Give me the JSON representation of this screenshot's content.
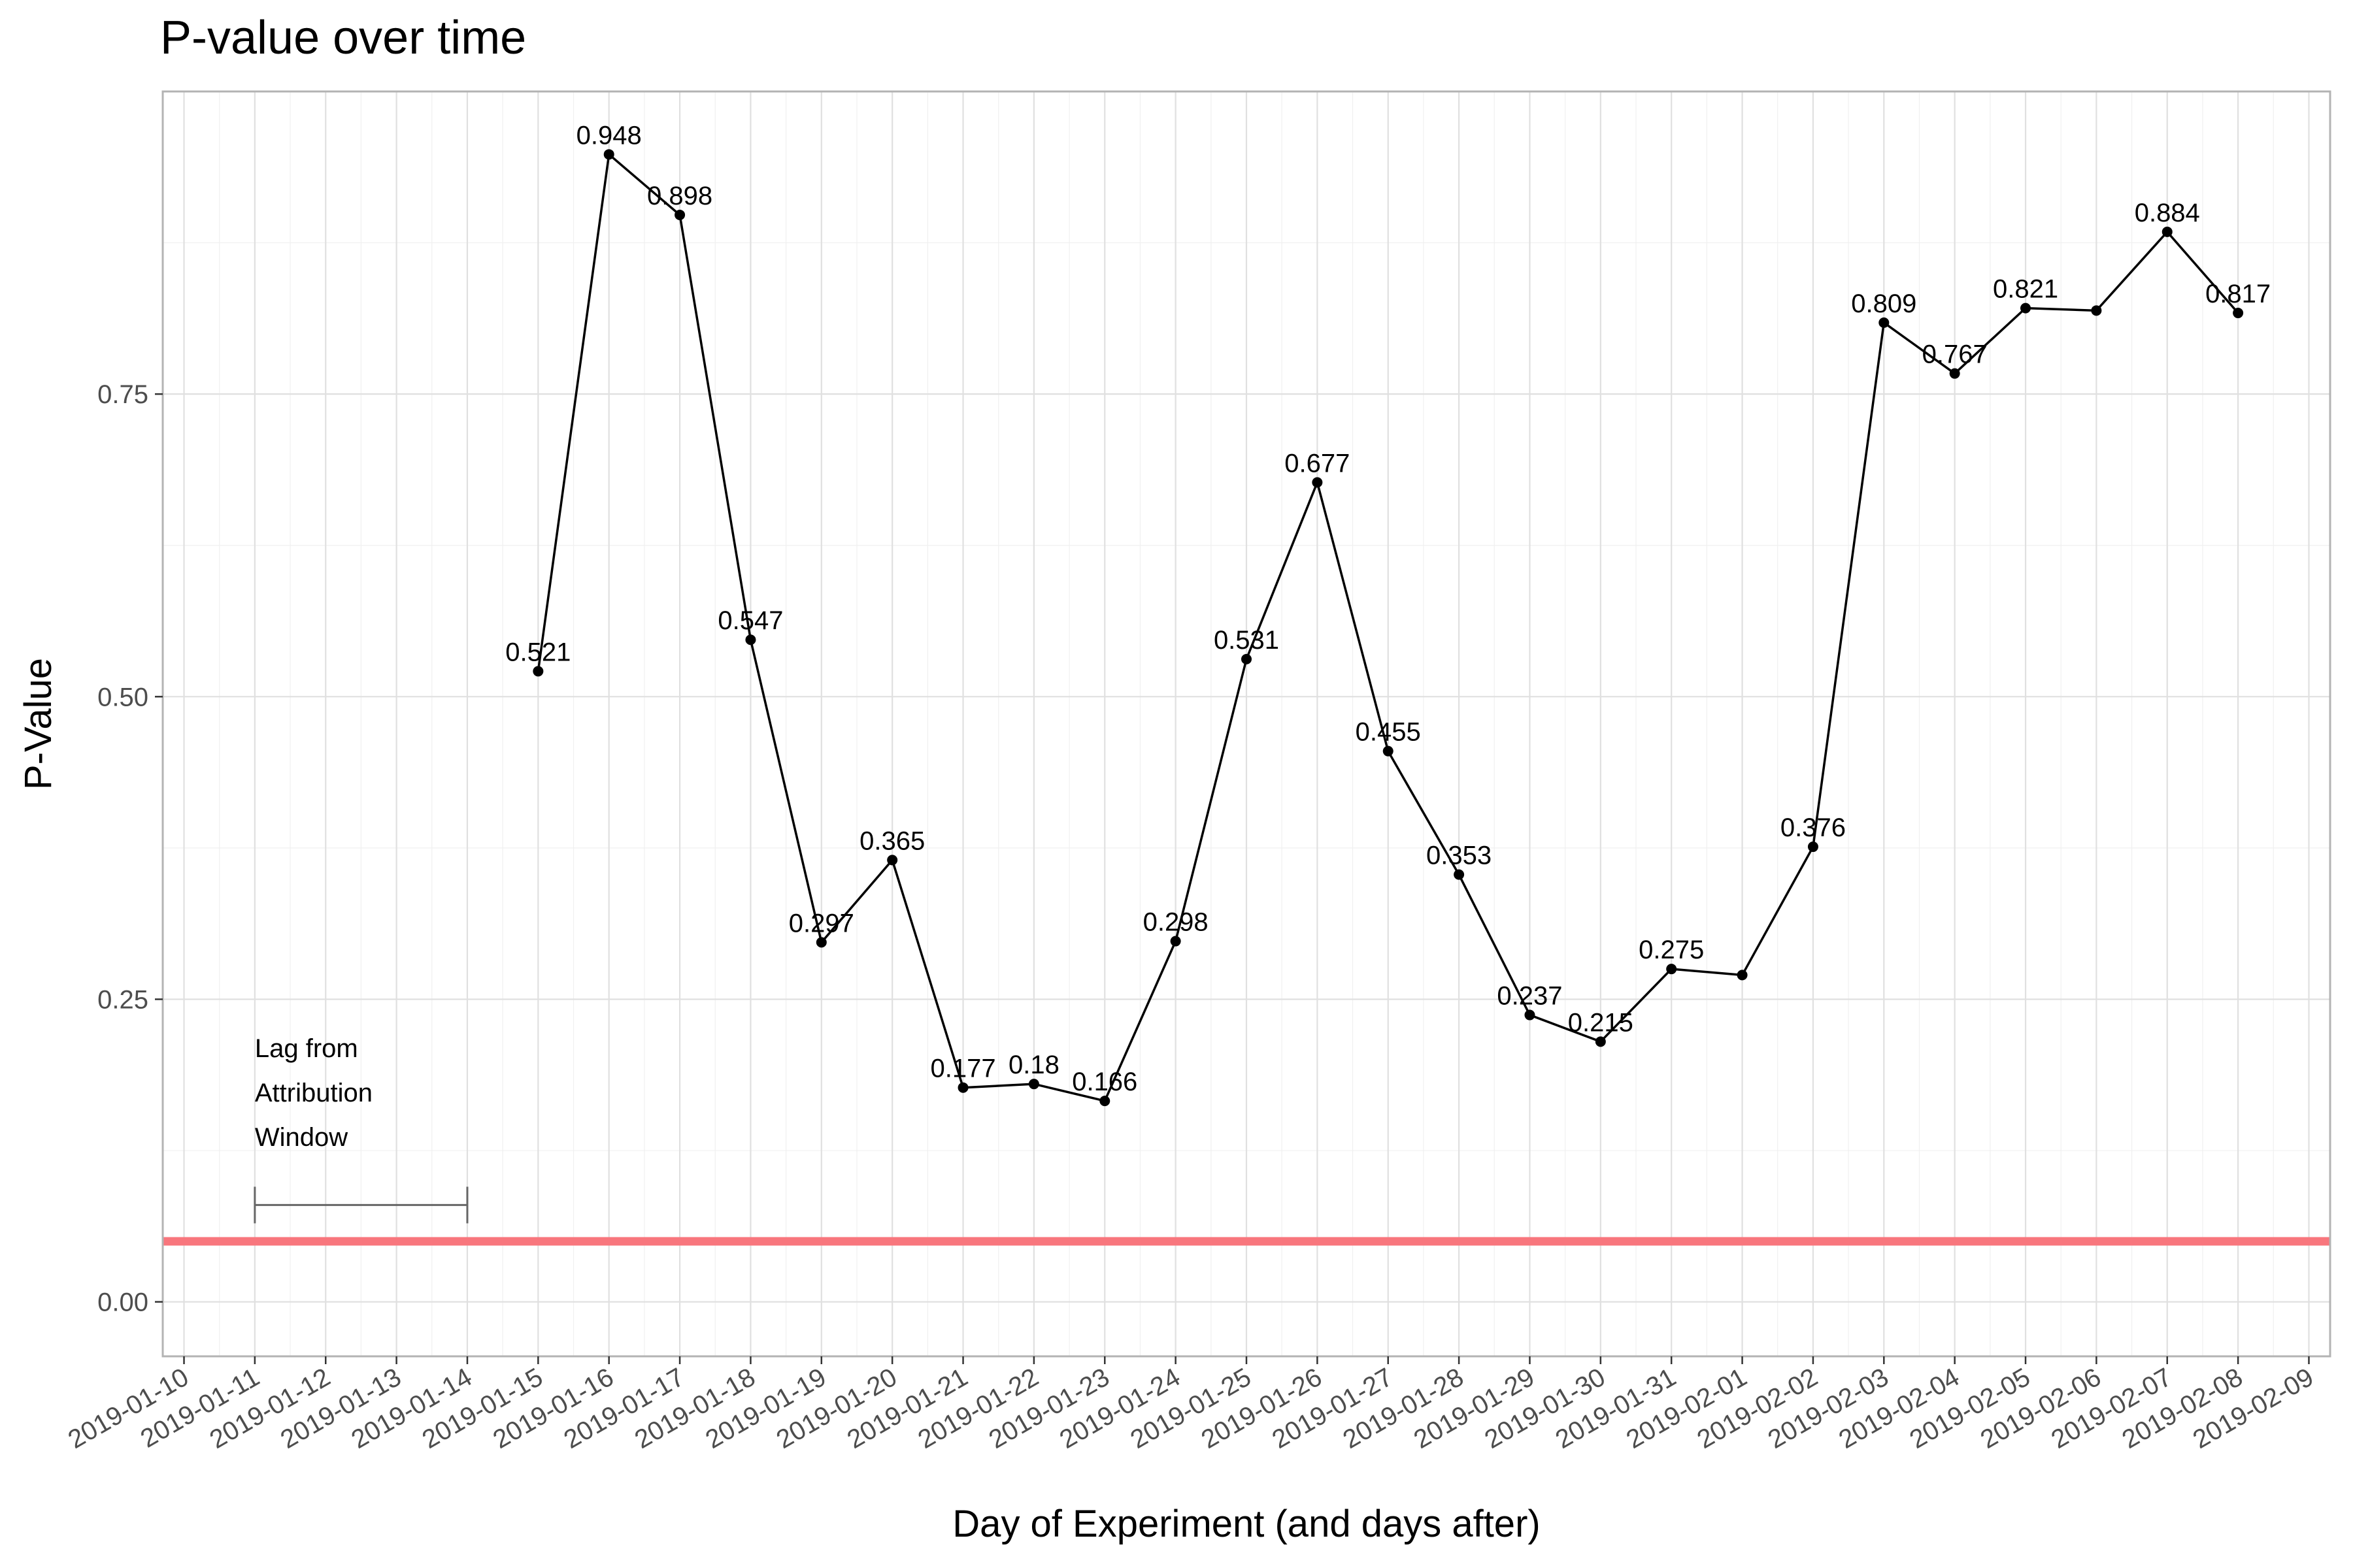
{
  "chart_data": {
    "type": "line",
    "title": "P-value over time",
    "xlabel": "Day of Experiment (and days after)",
    "ylabel": "P-Value",
    "x_ticks": [
      "2019-01-10",
      "2019-01-11",
      "2019-01-12",
      "2019-01-13",
      "2019-01-14",
      "2019-01-15",
      "2019-01-16",
      "2019-01-17",
      "2019-01-18",
      "2019-01-19",
      "2019-01-20",
      "2019-01-21",
      "2019-01-22",
      "2019-01-23",
      "2019-01-24",
      "2019-01-25",
      "2019-01-26",
      "2019-01-27",
      "2019-01-28",
      "2019-01-29",
      "2019-01-30",
      "2019-01-31",
      "2019-02-01",
      "2019-02-02",
      "2019-02-03",
      "2019-02-04",
      "2019-02-05",
      "2019-02-06",
      "2019-02-07",
      "2019-02-08",
      "2019-02-09"
    ],
    "xlim": [
      "2019-01-10",
      "2019-02-09"
    ],
    "y_ticks": [
      "0.00",
      "0.25",
      "0.50",
      "0.75"
    ],
    "ylim": [
      -0.045,
      1.0
    ],
    "grid": true,
    "series": [
      {
        "color": "#000000",
        "points": [
          {
            "x": "2019-01-15",
            "y": 0.521,
            "label": "0.521"
          },
          {
            "x": "2019-01-16",
            "y": 0.948,
            "label": "0.948"
          },
          {
            "x": "2019-01-17",
            "y": 0.898,
            "label": "0.898"
          },
          {
            "x": "2019-01-18",
            "y": 0.547,
            "label": "0.547"
          },
          {
            "x": "2019-01-19",
            "y": 0.297,
            "label": "0.297"
          },
          {
            "x": "2019-01-20",
            "y": 0.365,
            "label": "0.365"
          },
          {
            "x": "2019-01-21",
            "y": 0.177,
            "label": "0.177"
          },
          {
            "x": "2019-01-22",
            "y": 0.18,
            "label": "0.18"
          },
          {
            "x": "2019-01-23",
            "y": 0.166,
            "label": "0.166"
          },
          {
            "x": "2019-01-24",
            "y": 0.298,
            "label": "0.298"
          },
          {
            "x": "2019-01-25",
            "y": 0.531,
            "label": "0.531"
          },
          {
            "x": "2019-01-26",
            "y": 0.677,
            "label": "0.677"
          },
          {
            "x": "2019-01-27",
            "y": 0.455,
            "label": "0.455"
          },
          {
            "x": "2019-01-28",
            "y": 0.353,
            "label": "0.353"
          },
          {
            "x": "2019-01-29",
            "y": 0.237,
            "label": "0.237"
          },
          {
            "x": "2019-01-30",
            "y": 0.215,
            "label": "0.215"
          },
          {
            "x": "2019-01-31",
            "y": 0.275,
            "label": "0.275"
          },
          {
            "x": "2019-02-01",
            "y": 0.27,
            "label": ""
          },
          {
            "x": "2019-02-02",
            "y": 0.376,
            "label": "0.376"
          },
          {
            "x": "2019-02-03",
            "y": 0.809,
            "label": "0.809"
          },
          {
            "x": "2019-02-04",
            "y": 0.767,
            "label": "0.767"
          },
          {
            "x": "2019-02-05",
            "y": 0.821,
            "label": "0.821"
          },
          {
            "x": "2019-02-06",
            "y": 0.819,
            "label": ""
          },
          {
            "x": "2019-02-07",
            "y": 0.884,
            "label": "0.884"
          },
          {
            "x": "2019-02-08",
            "y": 0.817,
            "label": "0.817"
          }
        ]
      }
    ],
    "reference_line": {
      "y": 0.05,
      "color": "#f8767d"
    },
    "annotation": {
      "lines": [
        "Lag from",
        "Attribution",
        "Window"
      ],
      "bracket_start": "2019-01-11",
      "bracket_end": "2019-01-14",
      "bracket_y": 0.08,
      "color": "#666666"
    }
  }
}
